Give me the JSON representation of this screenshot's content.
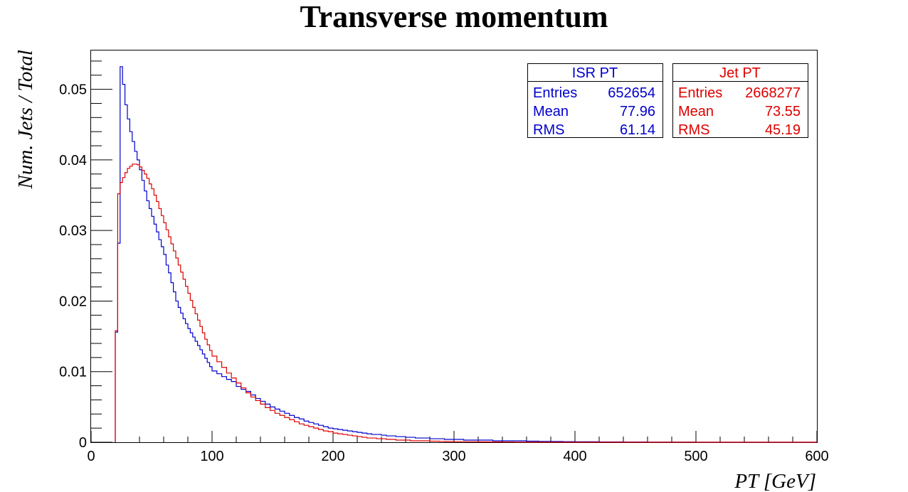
{
  "chart_data": {
    "type": "line",
    "title": "Transverse momentum",
    "xlabel": "PT [GeV]",
    "ylabel": "Num. Jets / Total",
    "xlim": [
      0,
      600
    ],
    "ylim": [
      0,
      0.0556
    ],
    "x_ticks": [
      "0",
      "100",
      "200",
      "300",
      "400",
      "500",
      "600"
    ],
    "y_ticks": [
      "0",
      "0.01",
      "0.02",
      "0.03",
      "0.04",
      "0.05"
    ],
    "grid": false,
    "histogram_style": "step",
    "bin_width": 4,
    "legend_position": "top-right",
    "series": [
      {
        "name": "ISR PT",
        "color": "#0000cc",
        "stats": {
          "entries_label": "Entries",
          "entries": "652654",
          "mean_label": "Mean",
          "mean": "77.96",
          "rms_label": "RMS",
          "rms": "61.14"
        },
        "points": [
          [
            20,
            0.0156
          ],
          [
            22,
            0.0282
          ],
          [
            24,
            0.0532
          ],
          [
            26,
            0.0507
          ],
          [
            28,
            0.0478
          ],
          [
            30,
            0.0458
          ],
          [
            32,
            0.044
          ],
          [
            34,
            0.0426
          ],
          [
            36,
            0.0412
          ],
          [
            38,
            0.04
          ],
          [
            40,
            0.0386
          ],
          [
            42,
            0.0371
          ],
          [
            44,
            0.0356
          ],
          [
            46,
            0.0342
          ],
          [
            48,
            0.0331
          ],
          [
            50,
            0.032
          ],
          [
            52,
            0.0309
          ],
          [
            54,
            0.0298
          ],
          [
            56,
            0.0287
          ],
          [
            58,
            0.0277
          ],
          [
            60,
            0.0266
          ],
          [
            62,
            0.0251
          ],
          [
            64,
            0.024
          ],
          [
            66,
            0.0226
          ],
          [
            68,
            0.0213
          ],
          [
            70,
            0.02
          ],
          [
            72,
            0.0191
          ],
          [
            74,
            0.0183
          ],
          [
            76,
            0.0175
          ],
          [
            78,
            0.0168
          ],
          [
            80,
            0.0161
          ],
          [
            82,
            0.0155
          ],
          [
            84,
            0.0149
          ],
          [
            86,
            0.0143
          ],
          [
            88,
            0.0137
          ],
          [
            90,
            0.0131
          ],
          [
            92,
            0.0125
          ],
          [
            94,
            0.0119
          ],
          [
            96,
            0.0113
          ],
          [
            98,
            0.0107
          ],
          [
            100,
            0.0101
          ],
          [
            104,
            0.0097
          ],
          [
            108,
            0.0093
          ],
          [
            112,
            0.0089
          ],
          [
            116,
            0.0086
          ],
          [
            120,
            0.0079
          ],
          [
            124,
            0.0075
          ],
          [
            128,
            0.0072
          ],
          [
            132,
            0.0067
          ],
          [
            136,
            0.0062
          ],
          [
            140,
            0.0058
          ],
          [
            144,
            0.0054
          ],
          [
            148,
            0.005
          ],
          [
            152,
            0.0047
          ],
          [
            156,
            0.0044
          ],
          [
            160,
            0.0041
          ],
          [
            164,
            0.0038
          ],
          [
            168,
            0.0035
          ],
          [
            172,
            0.0033
          ],
          [
            176,
            0.003
          ],
          [
            180,
            0.0028
          ],
          [
            184,
            0.0026
          ],
          [
            188,
            0.0024
          ],
          [
            192,
            0.0022
          ],
          [
            196,
            0.002
          ],
          [
            200,
            0.0019
          ],
          [
            204,
            0.0018
          ],
          [
            208,
            0.0017
          ],
          [
            212,
            0.0016
          ],
          [
            216,
            0.0015
          ],
          [
            220,
            0.0014
          ],
          [
            224,
            0.0013
          ],
          [
            228,
            0.0012
          ],
          [
            232,
            0.0011
          ],
          [
            236,
            0.0011
          ],
          [
            240,
            0.001
          ],
          [
            244,
            0.0009
          ],
          [
            248,
            0.0009
          ],
          [
            252,
            0.0008
          ],
          [
            256,
            0.0008
          ],
          [
            260,
            0.0007
          ],
          [
            264,
            0.0007
          ],
          [
            268,
            0.0006
          ],
          [
            272,
            0.0006
          ],
          [
            276,
            0.0006
          ],
          [
            280,
            0.0005
          ],
          [
            284,
            0.0005
          ],
          [
            288,
            0.0005
          ],
          [
            292,
            0.0004
          ],
          [
            296,
            0.0004
          ],
          [
            300,
            0.0004
          ],
          [
            308,
            0.0003
          ],
          [
            316,
            0.0003
          ],
          [
            324,
            0.0003
          ],
          [
            332,
            0.0002
          ],
          [
            340,
            0.0002
          ],
          [
            350,
            0.0002
          ],
          [
            360,
            0.00015
          ],
          [
            370,
            0.00012
          ],
          [
            380,
            0.0001
          ],
          [
            390,
            8e-05
          ],
          [
            400,
            6e-05
          ],
          [
            420,
            4e-05
          ],
          [
            440,
            3e-05
          ],
          [
            460,
            1e-05
          ],
          [
            500,
            0.0
          ],
          [
            600,
            0.0
          ]
        ]
      },
      {
        "name": "Jet PT",
        "color": "#dd0000",
        "stats": {
          "entries_label": "Entries",
          "entries": "2668277",
          "mean_label": "Mean",
          "mean": "73.55",
          "rms_label": "RMS",
          "rms": "45.19"
        },
        "points": [
          [
            20,
            0.0158
          ],
          [
            22,
            0.0352
          ],
          [
            24,
            0.0368
          ],
          [
            26,
            0.0375
          ],
          [
            28,
            0.0382
          ],
          [
            30,
            0.0388
          ],
          [
            32,
            0.0391
          ],
          [
            34,
            0.0394
          ],
          [
            36,
            0.0394
          ],
          [
            38,
            0.0393
          ],
          [
            40,
            0.039
          ],
          [
            42,
            0.0385
          ],
          [
            44,
            0.038
          ],
          [
            46,
            0.0374
          ],
          [
            48,
            0.0366
          ],
          [
            50,
            0.0359
          ],
          [
            52,
            0.035
          ],
          [
            54,
            0.0341
          ],
          [
            56,
            0.0331
          ],
          [
            58,
            0.0321
          ],
          [
            60,
            0.0311
          ],
          [
            62,
            0.0301
          ],
          [
            64,
            0.0291
          ],
          [
            66,
            0.0281
          ],
          [
            68,
            0.0271
          ],
          [
            70,
            0.0261
          ],
          [
            72,
            0.0251
          ],
          [
            74,
            0.0241
          ],
          [
            76,
            0.0231
          ],
          [
            78,
            0.0221
          ],
          [
            80,
            0.0211
          ],
          [
            82,
            0.0201
          ],
          [
            84,
            0.0191
          ],
          [
            86,
            0.0182
          ],
          [
            88,
            0.0173
          ],
          [
            90,
            0.0164
          ],
          [
            92,
            0.0155
          ],
          [
            94,
            0.0146
          ],
          [
            96,
            0.0138
          ],
          [
            98,
            0.013
          ],
          [
            100,
            0.0122
          ],
          [
            104,
            0.0114
          ],
          [
            108,
            0.0106
          ],
          [
            112,
            0.0098
          ],
          [
            116,
            0.0091
          ],
          [
            120,
            0.0084
          ],
          [
            124,
            0.0077
          ],
          [
            128,
            0.007
          ],
          [
            132,
            0.0064
          ],
          [
            136,
            0.0059
          ],
          [
            140,
            0.0054
          ],
          [
            144,
            0.0049
          ],
          [
            148,
            0.0045
          ],
          [
            152,
            0.0041
          ],
          [
            156,
            0.0038
          ],
          [
            160,
            0.0035
          ],
          [
            164,
            0.0032
          ],
          [
            168,
            0.0029
          ],
          [
            172,
            0.0026
          ],
          [
            176,
            0.0024
          ],
          [
            180,
            0.0022
          ],
          [
            184,
            0.002
          ],
          [
            188,
            0.0018
          ],
          [
            192,
            0.0016
          ],
          [
            196,
            0.0015
          ],
          [
            200,
            0.0013
          ],
          [
            204,
            0.0012
          ],
          [
            208,
            0.0011
          ],
          [
            212,
            0.001
          ],
          [
            216,
            0.0009
          ],
          [
            220,
            0.0008
          ],
          [
            224,
            0.0007
          ],
          [
            228,
            0.0006
          ],
          [
            232,
            0.0006
          ],
          [
            236,
            0.0005
          ],
          [
            240,
            0.0005
          ],
          [
            244,
            0.0004
          ],
          [
            248,
            0.0004
          ],
          [
            252,
            0.0003
          ],
          [
            256,
            0.0003
          ],
          [
            260,
            0.0003
          ],
          [
            264,
            0.0002
          ],
          [
            268,
            0.0002
          ],
          [
            272,
            0.0002
          ],
          [
            276,
            0.0002
          ],
          [
            280,
            0.00015
          ],
          [
            284,
            0.00015
          ],
          [
            288,
            0.00012
          ],
          [
            292,
            0.0001
          ],
          [
            296,
            0.0001
          ],
          [
            300,
            8e-05
          ],
          [
            310,
            7e-05
          ],
          [
            320,
            5e-05
          ],
          [
            330,
            4e-05
          ],
          [
            340,
            3e-05
          ],
          [
            350,
            2e-05
          ],
          [
            360,
            1e-05
          ],
          [
            380,
            0.0
          ],
          [
            600,
            0.0
          ]
        ]
      }
    ]
  }
}
